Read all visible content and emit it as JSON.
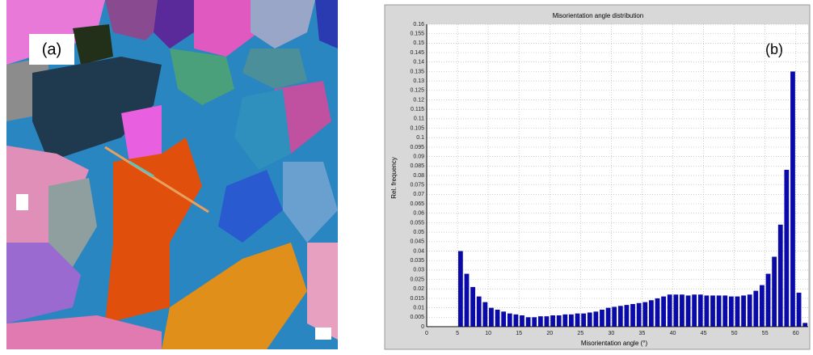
{
  "image": {
    "label": "(a)"
  },
  "chart_data": {
    "type": "histogram",
    "title": "Misorientation angle distribution",
    "x_label": "Misorientation angle (°)",
    "y_label": "Rel. frequency",
    "annotations": [
      "(b)"
    ],
    "color": "#0a0aa8",
    "grid": true,
    "xlim": [
      0,
      62
    ],
    "ylim": [
      0,
      0.16
    ],
    "xticks": [
      0,
      5,
      10,
      15,
      20,
      25,
      30,
      35,
      40,
      45,
      50,
      55,
      60
    ],
    "yticks": [
      0,
      0.005,
      0.01,
      0.015,
      0.02,
      0.025,
      0.03,
      0.035,
      0.04,
      0.045,
      0.05,
      0.055,
      0.06,
      0.065,
      0.07,
      0.075,
      0.08,
      0.085,
      0.09,
      0.095,
      0.1,
      0.105,
      0.11,
      0.115,
      0.12,
      0.125,
      0.13,
      0.135,
      0.14,
      0.145,
      0.15,
      0.155,
      0.16
    ],
    "bins": [
      5,
      6,
      7,
      8,
      9,
      10,
      11,
      12,
      13,
      14,
      15,
      16,
      17,
      18,
      19,
      20,
      21,
      22,
      23,
      24,
      25,
      26,
      27,
      28,
      29,
      30,
      31,
      32,
      33,
      34,
      35,
      36,
      37,
      38,
      39,
      40,
      41,
      42,
      43,
      44,
      45,
      46,
      47,
      48,
      49,
      50,
      51,
      52,
      53,
      54,
      55,
      56,
      57,
      58,
      59,
      60,
      61,
      62
    ],
    "values": [
      0.04,
      0.028,
      0.021,
      0.016,
      0.013,
      0.01,
      0.009,
      0.008,
      0.007,
      0.0065,
      0.006,
      0.005,
      0.005,
      0.0055,
      0.0055,
      0.006,
      0.006,
      0.0065,
      0.0065,
      0.007,
      0.007,
      0.0075,
      0.008,
      0.009,
      0.01,
      0.0105,
      0.011,
      0.0115,
      0.012,
      0.0125,
      0.013,
      0.014,
      0.015,
      0.016,
      0.017,
      0.017,
      0.017,
      0.0165,
      0.017,
      0.017,
      0.0165,
      0.0165,
      0.0165,
      0.0165,
      0.016,
      0.016,
      0.0165,
      0.017,
      0.019,
      0.022,
      0.028,
      0.037,
      0.054,
      0.083,
      0.135,
      0.018,
      0.002
    ]
  }
}
